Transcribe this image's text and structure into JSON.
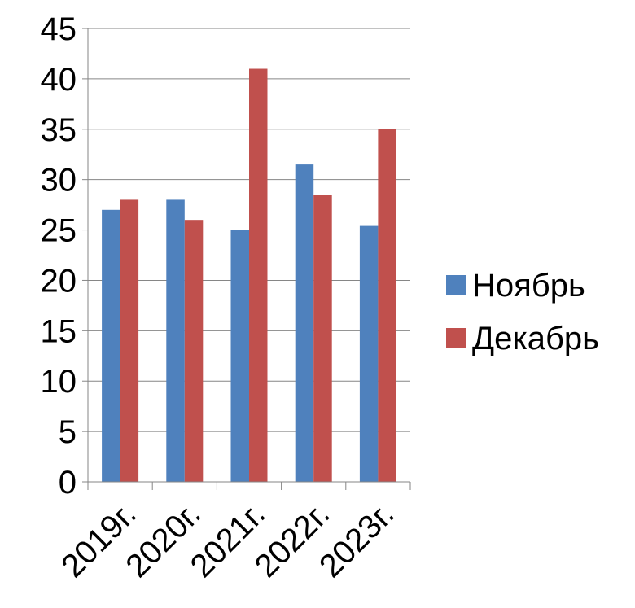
{
  "chart_data": {
    "type": "bar",
    "categories": [
      "2019г.",
      "2020г.",
      "2021г.",
      "2022г.",
      "2023г."
    ],
    "series": [
      {
        "name": "Ноябрь",
        "values": [
          27,
          28,
          25,
          31.5,
          25.4
        ],
        "color": "#4F81BD"
      },
      {
        "name": "Декабрь",
        "values": [
          28,
          26,
          41,
          28.5,
          35
        ],
        "color": "#C0504D"
      }
    ],
    "ylim": [
      0,
      45
    ],
    "yticks": [
      "0",
      "5",
      "10",
      "15",
      "20",
      "25",
      "30",
      "35",
      "40",
      "45"
    ],
    "grid": true,
    "legend_position": "right"
  }
}
